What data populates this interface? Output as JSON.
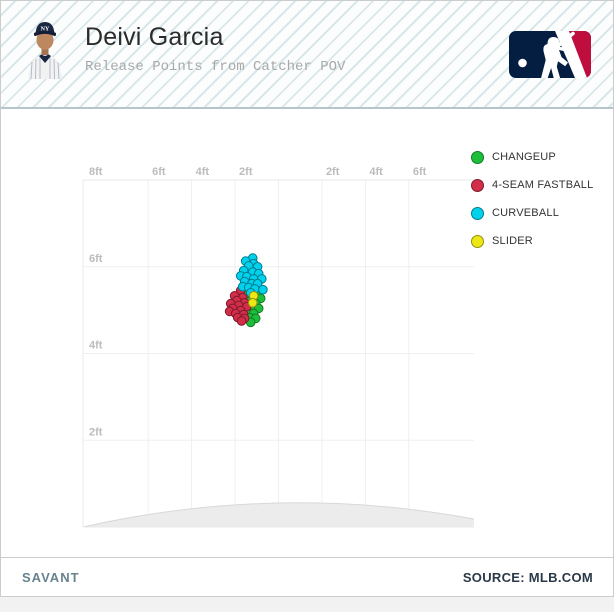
{
  "header": {
    "player_name": "Deivi Garcia",
    "subtitle": "Release Points from Catcher POV"
  },
  "icons": {
    "player_photo": "yankees-player-headshot",
    "mlb_logo": "mlb-logo"
  },
  "footer": {
    "brand": "SAVANT",
    "source": "SOURCE: MLB.COM"
  },
  "chart_data": {
    "type": "scatter",
    "title": "Release Points from Catcher POV",
    "xlabel": "",
    "ylabel": "",
    "x_unit": "ft",
    "y_unit": "ft",
    "xlim": [
      -9,
      9
    ],
    "ylim": [
      0,
      8
    ],
    "grid": true,
    "legend_position": "right",
    "mound_visible": true,
    "x_ticks": [
      {
        "v": -8,
        "label": "8ft",
        "grid": false,
        "edge": true
      },
      {
        "v": -6,
        "label": "6ft"
      },
      {
        "v": -4,
        "label": "4ft"
      },
      {
        "v": -2,
        "label": "2ft"
      },
      {
        "v": 0,
        "label": ""
      },
      {
        "v": 2,
        "label": "2ft"
      },
      {
        "v": 4,
        "label": "4ft"
      },
      {
        "v": 6,
        "label": "6ft"
      }
    ],
    "y_ticks": [
      {
        "v": 6,
        "label": "6ft"
      },
      {
        "v": 4,
        "label": "4ft"
      },
      {
        "v": 2,
        "label": "2ft"
      }
    ],
    "series": [
      {
        "name": "CHANGEUP",
        "color": "#1DBE3A",
        "stroke": "#117a24",
        "points": [
          [
            -1.0,
            5.56
          ],
          [
            -1.28,
            5.45
          ],
          [
            -0.91,
            5.4
          ],
          [
            -1.51,
            5.36
          ],
          [
            -1.14,
            5.29
          ],
          [
            -0.82,
            5.27
          ],
          [
            -1.37,
            5.2
          ],
          [
            -1.05,
            5.15
          ],
          [
            -1.23,
            5.06
          ],
          [
            -0.91,
            5.04
          ],
          [
            -1.46,
            4.97
          ],
          [
            -1.14,
            4.92
          ],
          [
            -1.33,
            4.83
          ],
          [
            -1.05,
            4.81
          ],
          [
            -1.28,
            4.72
          ]
        ]
      },
      {
        "name": "4-SEAM FASTBALL",
        "color": "#D22D49",
        "stroke": "#7d1a2c",
        "points": [
          [
            -1.74,
            5.45
          ],
          [
            -2.02,
            5.33
          ],
          [
            -1.65,
            5.29
          ],
          [
            -1.92,
            5.22
          ],
          [
            -1.56,
            5.17
          ],
          [
            -2.2,
            5.15
          ],
          [
            -1.83,
            5.11
          ],
          [
            -1.46,
            5.08
          ],
          [
            -2.11,
            5.04
          ],
          [
            -1.74,
            4.99
          ],
          [
            -2.25,
            4.97
          ],
          [
            -1.97,
            4.92
          ],
          [
            -1.6,
            4.9
          ],
          [
            -1.88,
            4.83
          ],
          [
            -1.56,
            4.81
          ],
          [
            -1.7,
            4.75
          ]
        ]
      },
      {
        "name": "CURVEBALL",
        "color": "#00D1ED",
        "stroke": "#007c8d",
        "points": [
          [
            -1.19,
            6.2
          ],
          [
            -1.51,
            6.13
          ],
          [
            -1.14,
            6.07
          ],
          [
            -1.37,
            6.02
          ],
          [
            -0.96,
            6.0
          ],
          [
            -1.6,
            5.91
          ],
          [
            -1.19,
            5.88
          ],
          [
            -0.91,
            5.84
          ],
          [
            -1.74,
            5.79
          ],
          [
            -1.46,
            5.77
          ],
          [
            -1.14,
            5.72
          ],
          [
            -0.77,
            5.72
          ],
          [
            -1.56,
            5.66
          ],
          [
            -1.23,
            5.61
          ],
          [
            -0.96,
            5.61
          ],
          [
            -1.65,
            5.54
          ],
          [
            -1.37,
            5.52
          ],
          [
            -1.09,
            5.49
          ],
          [
            -0.72,
            5.47
          ],
          [
            -1.28,
            5.4
          ]
        ]
      },
      {
        "name": "SLIDER",
        "color": "#EEE716",
        "stroke": "#95900e",
        "points": [
          [
            -1.14,
            5.33
          ],
          [
            -1.19,
            5.17
          ]
        ]
      }
    ]
  }
}
